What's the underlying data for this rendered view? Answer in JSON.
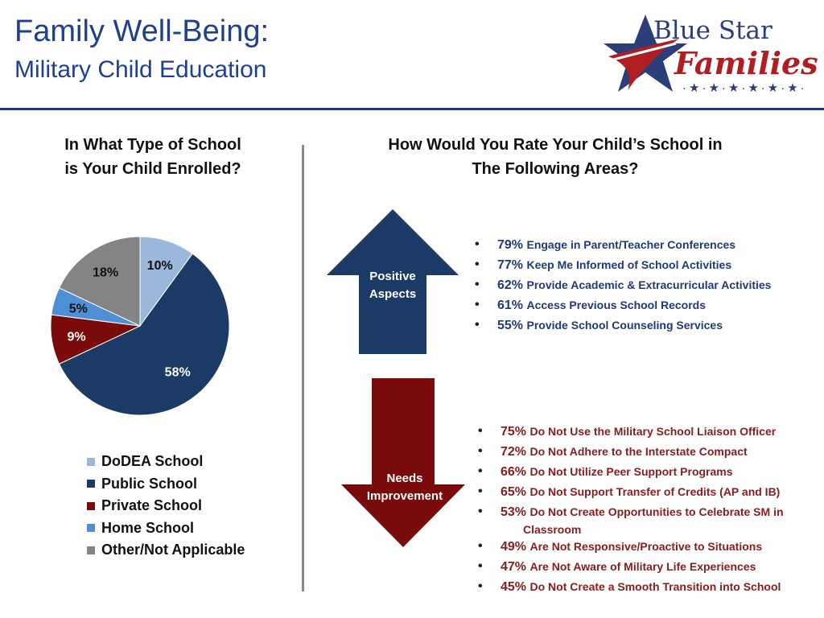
{
  "title": {
    "line1": "Family Well-Being:",
    "line2": "Military Child Education"
  },
  "logo": {
    "line1": "Blue Star",
    "line2": "Families",
    "stars": "·★·★·★·★·★·★·"
  },
  "colors": {
    "title": "#1f3f8f",
    "navy": "#1b3a66",
    "maroon": "#7a0b0b"
  },
  "left_heading": {
    "line1": "In What Type of School",
    "line2": "is Your Child Enrolled?"
  },
  "right_heading": {
    "line1": "How Would You Rate Your Child’s School in",
    "line2": "The Following Areas?"
  },
  "chart_data": {
    "type": "pie",
    "title": "In What Type of School is Your Child Enrolled?",
    "categories": [
      "DoDEA School",
      "Public School",
      "Private School",
      "Home School",
      "Other/Not Applicable"
    ],
    "values": [
      10,
      58,
      9,
      5,
      18
    ],
    "labels": [
      "10%",
      "58%",
      "9%",
      "5%",
      "18%"
    ],
    "colors": [
      "#9bb7d9",
      "#1b3a66",
      "#7a0b0b",
      "#4f8fd6",
      "#848484"
    ],
    "label_colors": [
      "#111111",
      "#ffffff",
      "#ffffff",
      "#111111",
      "#111111"
    ],
    "legend_position": "bottom"
  },
  "positive": {
    "label_line1": "Positive",
    "label_line2": "Aspects",
    "items": [
      {
        "pct": "79%",
        "text": "Engage in Parent/Teacher Conferences"
      },
      {
        "pct": "77%",
        "text": "Keep Me Informed of School Activities"
      },
      {
        "pct": "62%",
        "text": "Provide Academic & Extracurricular Activities"
      },
      {
        "pct": "61%",
        "text": "Access Previous School Records"
      },
      {
        "pct": "55%",
        "text": "Provide School Counseling Services"
      }
    ]
  },
  "needs": {
    "label_line1": "Needs",
    "label_line2": "Improvement",
    "items": [
      {
        "pct": "75%",
        "text": "Do Not Use the Military School Liaison Officer"
      },
      {
        "pct": "72%",
        "text": "Do Not Adhere to the Interstate Compact"
      },
      {
        "pct": "66%",
        "text": "Do Not Utilize Peer Support Programs"
      },
      {
        "pct": "65%",
        "text": "Do Not Support Transfer of Credits (AP and IB)"
      },
      {
        "pct": "53%",
        "text": "Do Not Create Opportunities to Celebrate SM in",
        "cont": "Classroom"
      },
      {
        "pct": "49%",
        "text": "Are Not Responsive/Proactive to Situations"
      },
      {
        "pct": "47%",
        "text": "Are Not Aware of Military Life Experiences"
      },
      {
        "pct": "45%",
        "text": "Do Not Create a Smooth Transition into School"
      }
    ]
  }
}
